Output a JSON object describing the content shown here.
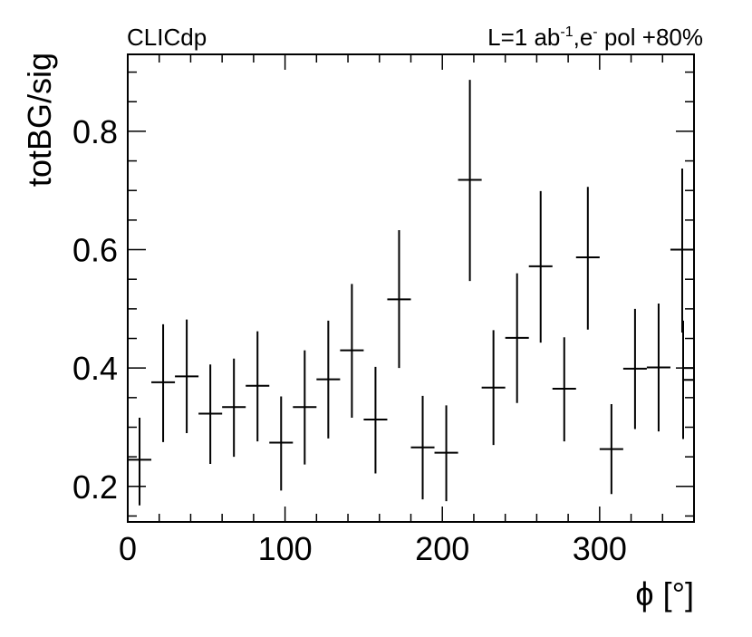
{
  "chart_data": {
    "type": "scatter",
    "label_left": "CLICdp",
    "label_right": {
      "main": "L=1 ab",
      "sup1": "-1",
      "mid": ",e",
      "sup2": "-",
      "tail": " pol +80%"
    },
    "xlabel": "ϕ [°]",
    "ylabel": "totBG/sig",
    "xlim": [
      0,
      360
    ],
    "ylim": [
      0.14,
      0.93
    ],
    "x_ticks": [
      0,
      100,
      200,
      300
    ],
    "x_tick_labels": [
      "0",
      "100",
      "200",
      "300"
    ],
    "y_ticks": [
      0.2,
      0.4,
      0.6,
      0.8
    ],
    "y_tick_labels": [
      "0.2",
      "0.4",
      "0.6",
      "0.8"
    ],
    "grid": false,
    "legend": "none",
    "series": [
      {
        "points": [
          {
            "x": 7.5,
            "y": 0.245,
            "xerr": 7.5,
            "ylo": 0.168,
            "yhi": 0.316
          },
          {
            "x": 22.5,
            "y": 0.376,
            "xerr": 7.5,
            "ylo": 0.275,
            "yhi": 0.474
          },
          {
            "x": 37.5,
            "y": 0.386,
            "xerr": 7.5,
            "ylo": 0.29,
            "yhi": 0.482
          },
          {
            "x": 52.5,
            "y": 0.323,
            "xerr": 7.5,
            "ylo": 0.238,
            "yhi": 0.406
          },
          {
            "x": 67.5,
            "y": 0.334,
            "xerr": 7.5,
            "ylo": 0.25,
            "yhi": 0.416
          },
          {
            "x": 82.5,
            "y": 0.37,
            "xerr": 7.5,
            "ylo": 0.276,
            "yhi": 0.462
          },
          {
            "x": 97.5,
            "y": 0.274,
            "xerr": 7.5,
            "ylo": 0.193,
            "yhi": 0.352
          },
          {
            "x": 112.5,
            "y": 0.334,
            "xerr": 7.5,
            "ylo": 0.237,
            "yhi": 0.43
          },
          {
            "x": 127.5,
            "y": 0.381,
            "xerr": 7.5,
            "ylo": 0.281,
            "yhi": 0.48
          },
          {
            "x": 142.5,
            "y": 0.43,
            "xerr": 7.5,
            "ylo": 0.316,
            "yhi": 0.542
          },
          {
            "x": 157.5,
            "y": 0.313,
            "xerr": 7.5,
            "ylo": 0.222,
            "yhi": 0.402
          },
          {
            "x": 172.5,
            "y": 0.516,
            "xerr": 7.5,
            "ylo": 0.4,
            "yhi": 0.633
          },
          {
            "x": 187.5,
            "y": 0.266,
            "xerr": 7.5,
            "ylo": 0.178,
            "yhi": 0.353
          },
          {
            "x": 202.5,
            "y": 0.257,
            "xerr": 7.5,
            "ylo": 0.175,
            "yhi": 0.337
          },
          {
            "x": 217.5,
            "y": 0.718,
            "xerr": 7.5,
            "ylo": 0.547,
            "yhi": 0.887
          },
          {
            "x": 232.5,
            "y": 0.367,
            "xerr": 7.5,
            "ylo": 0.27,
            "yhi": 0.464
          },
          {
            "x": 247.5,
            "y": 0.451,
            "xerr": 7.5,
            "ylo": 0.341,
            "yhi": 0.56
          },
          {
            "x": 262.5,
            "y": 0.572,
            "xerr": 7.5,
            "ylo": 0.443,
            "yhi": 0.699
          },
          {
            "x": 277.5,
            "y": 0.365,
            "xerr": 7.5,
            "ylo": 0.276,
            "yhi": 0.452
          },
          {
            "x": 292.5,
            "y": 0.587,
            "xerr": 7.5,
            "ylo": 0.465,
            "yhi": 0.706
          },
          {
            "x": 307.5,
            "y": 0.263,
            "xerr": 7.5,
            "ylo": 0.187,
            "yhi": 0.339
          },
          {
            "x": 322.5,
            "y": 0.399,
            "xerr": 7.5,
            "ylo": 0.297,
            "yhi": 0.5
          },
          {
            "x": 337.5,
            "y": 0.401,
            "xerr": 7.5,
            "ylo": 0.293,
            "yhi": 0.509
          },
          {
            "x": 352.5,
            "y": 0.6,
            "xerr": 7.5,
            "ylo": 0.46,
            "yhi": 0.737
          },
          {
            "x": 360,
            "y": 0.38,
            "xerr": 7.5,
            "ylo": 0.28,
            "yhi": 0.48
          },
          {
            "x": 360,
            "y": 0.4,
            "xerr": 7.5,
            "ylo": 0.3,
            "yhi": 0.4
          }
        ]
      }
    ]
  }
}
